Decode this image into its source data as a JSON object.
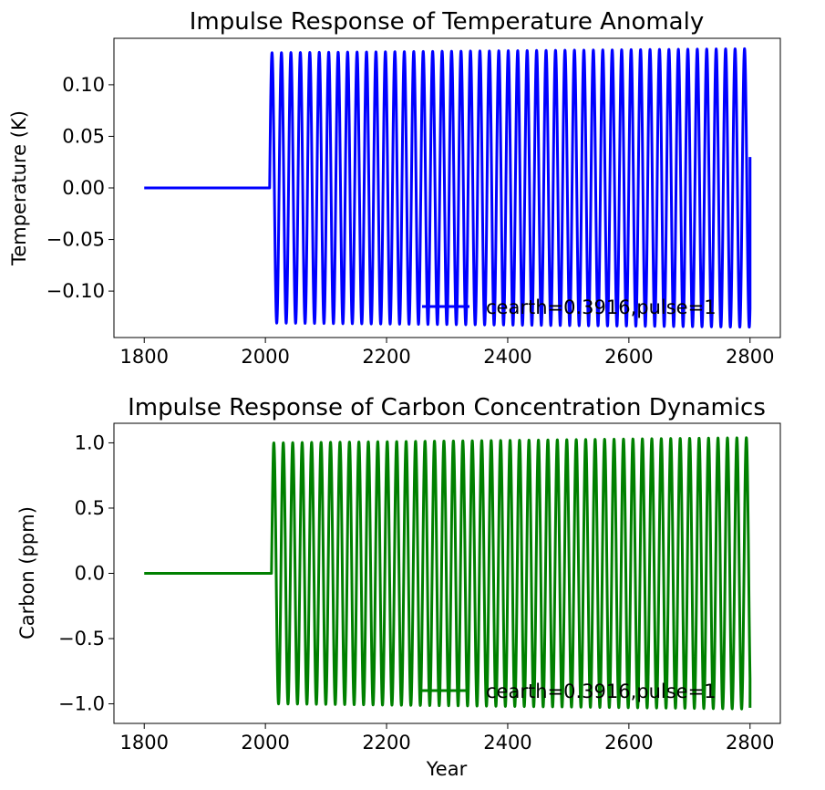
{
  "chart_data": [
    {
      "type": "line",
      "title": "Impulse Response of Temperature Anomaly",
      "xlabel": "",
      "ylabel": "Temperature (K)",
      "xlim": [
        1750,
        2850
      ],
      "ylim": [
        -0.145,
        0.145
      ],
      "xticks": [
        1800,
        2000,
        2200,
        2400,
        2600,
        2800
      ],
      "xtick_labels": [
        "1800",
        "2000",
        "2200",
        "2400",
        "2600",
        "2800"
      ],
      "yticks": [
        0.1,
        0.05,
        0.0,
        -0.05,
        -0.1
      ],
      "ytick_labels": [
        "0.10",
        "0.05",
        "0.00",
        "−0.05",
        "−0.10"
      ],
      "grid": false,
      "legend_position": "lower-right",
      "series": [
        {
          "name": "cearth=0.3916,pulse=1",
          "color": "#0000ff",
          "baseline_x": [
            1800,
            2007
          ],
          "baseline_y": 0,
          "pulse_year": 2007,
          "end_year": 2800,
          "end_value": 0.03,
          "period_years": 15.6,
          "amplitude_start": 0.131,
          "amplitude_end": 0.135,
          "first_peak_value": 0.13
        }
      ]
    },
    {
      "type": "line",
      "title": "Impulse Response of Carbon Concentration Dynamics",
      "xlabel": "Year",
      "ylabel": "Carbon (ppm)",
      "xlim": [
        1750,
        2850
      ],
      "ylim": [
        -1.15,
        1.15
      ],
      "xticks": [
        1800,
        2000,
        2200,
        2400,
        2600,
        2800
      ],
      "xtick_labels": [
        "1800",
        "2000",
        "2200",
        "2400",
        "2600",
        "2800"
      ],
      "yticks": [
        1.0,
        0.5,
        0.0,
        -0.5,
        -1.0
      ],
      "ytick_labels": [
        "1.0",
        "0.5",
        "0.0",
        "−0.5",
        "−1.0"
      ],
      "grid": false,
      "legend_position": "lower-right",
      "series": [
        {
          "name": "cearth=0.3916,pulse=1",
          "color": "#008000",
          "baseline_x": [
            1800,
            2010
          ],
          "baseline_y": 0,
          "pulse_year": 2010,
          "end_year": 2800,
          "end_value": -1.03,
          "period_years": 15.6,
          "amplitude_start": 1.0,
          "amplitude_end": 1.04,
          "first_peak_value": 0.83
        }
      ]
    }
  ]
}
